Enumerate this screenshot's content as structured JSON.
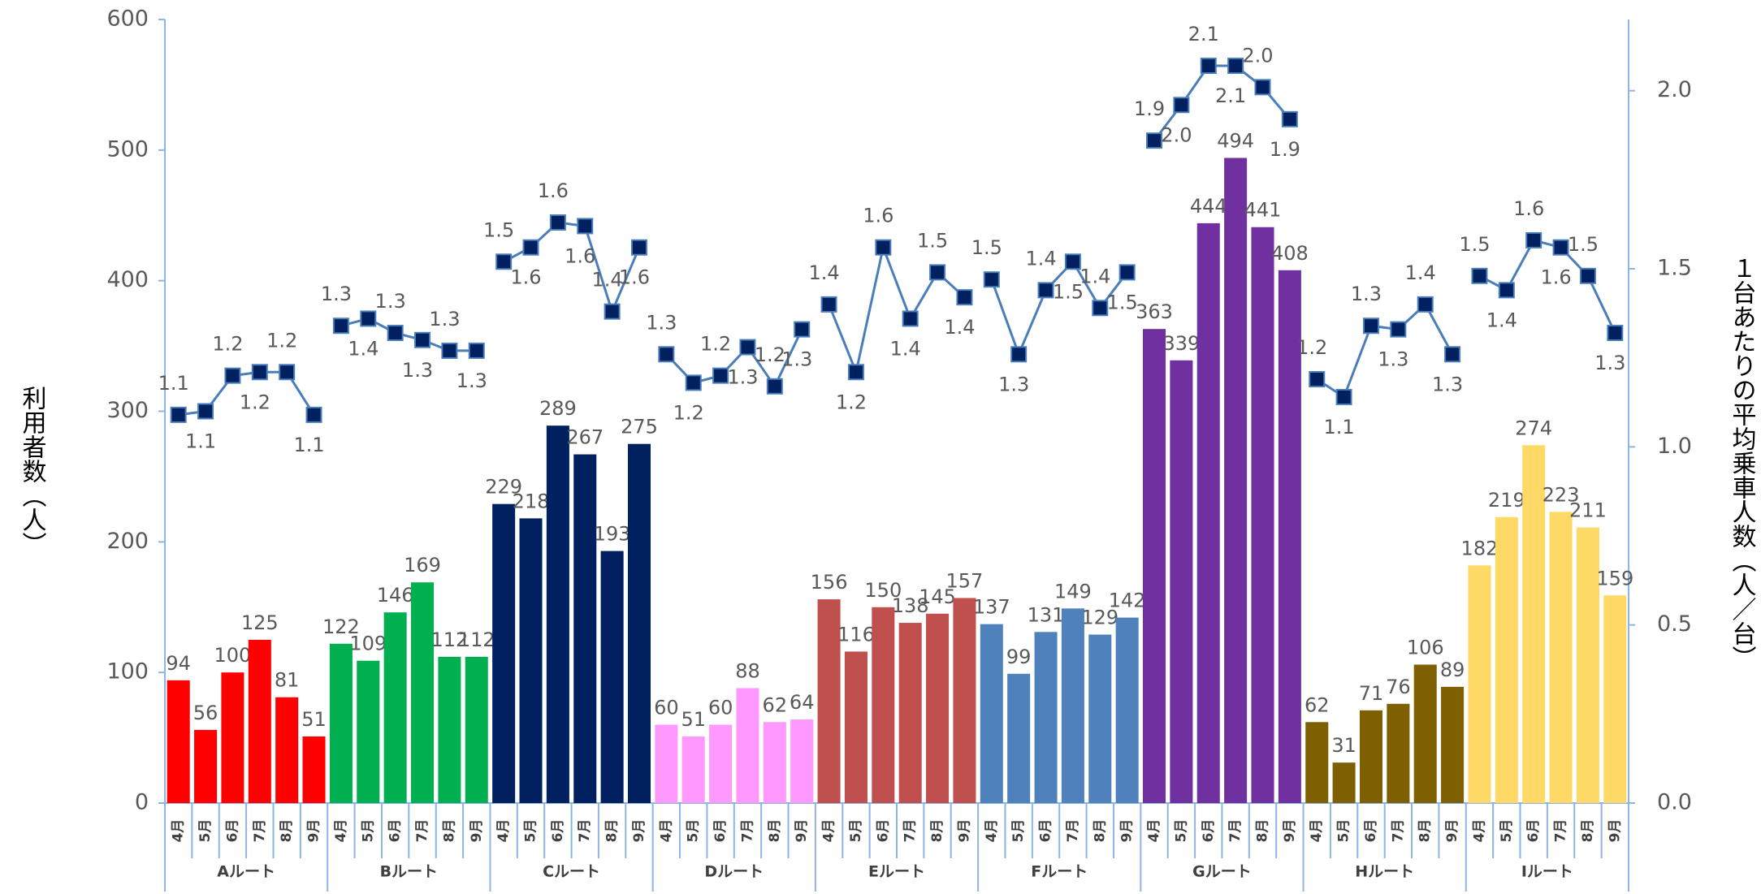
{
  "chart_data": {
    "type": "bar",
    "y_label": "利用者数（人）",
    "y2_label": "１台あたりの平均乗車人数（人／台）",
    "ylim": [
      0,
      600
    ],
    "yticks": [
      0,
      100,
      200,
      300,
      400,
      500,
      600
    ],
    "y2lim": [
      0,
      2.2
    ],
    "y2ticks": [
      {
        "value": 0,
        "label": "0.0"
      },
      0.5,
      {
        "value": 1,
        "label": "1.0"
      },
      1.5,
      {
        "value": 2,
        "label": "2.0"
      }
    ],
    "group_labels": [
      "Aルート",
      "Bルート",
      "Cルート",
      "Dルート",
      "Eルート",
      "Fルート",
      "Gルート",
      "Hルート",
      "Iルート"
    ],
    "categories": [
      "4月",
      "5月",
      "6月",
      "7月",
      "8月",
      "9月",
      "4月",
      "5月",
      "6月",
      "7月",
      "8月",
      "9月",
      "4月",
      "5月",
      "6月",
      "7月",
      "8月",
      "9月",
      "4月",
      "5月",
      "6月",
      "7月",
      "8月",
      "9月",
      "4月",
      "5月",
      "6月",
      "7月",
      "8月",
      "9月",
      "4月",
      "5月",
      "6月",
      "7月",
      "8月",
      "9月",
      "4月",
      "5月",
      "6月",
      "7月",
      "8月",
      "9月",
      "4月",
      "5月",
      "6月",
      "7月",
      "8月",
      "9月",
      "4月",
      "5月",
      "6月",
      "7月",
      "8月",
      "9月"
    ],
    "series": [
      {
        "type": "bar",
        "group_colors": [
          "#ff0000",
          "#00b050",
          "#002060",
          "#ff99ff",
          "#c0504d",
          "#4f81bd",
          "#7030a0",
          "#7f6000",
          "#ffd966"
        ],
        "values": [
          94,
          56,
          100,
          125,
          81,
          51,
          122,
          109,
          146,
          169,
          112,
          112,
          229,
          218,
          289,
          267,
          193,
          275,
          60,
          51,
          60,
          88,
          62,
          64,
          156,
          116,
          150,
          138,
          145,
          157,
          137,
          99,
          131,
          149,
          129,
          142,
          363,
          339,
          444,
          494,
          441,
          408,
          62,
          31,
          71,
          76,
          106,
          89,
          182,
          219,
          274,
          223,
          211,
          159
        ]
      },
      {
        "type": "line",
        "axis": "y2",
        "color": "#4a7ebb",
        "marker_color": "#002060",
        "values": [
          1.09,
          1.1,
          1.2,
          1.21,
          1.21,
          1.09,
          1.34,
          1.36,
          1.32,
          1.3,
          1.27,
          1.27,
          1.52,
          1.56,
          1.63,
          1.62,
          1.38,
          1.56,
          1.26,
          1.18,
          1.2,
          1.28,
          1.17,
          1.33,
          1.4,
          1.21,
          1.56,
          1.36,
          1.49,
          1.42,
          1.47,
          1.26,
          1.44,
          1.52,
          1.39,
          1.49,
          1.86,
          1.96,
          2.07,
          2.07,
          2.01,
          1.92,
          1.19,
          1.14,
          1.34,
          1.33,
          1.4,
          1.26,
          1.48,
          1.44,
          1.58,
          1.56,
          1.48,
          1.32
        ],
        "value_labels": [
          "1.1",
          "1.1",
          "1.2",
          "1.2",
          "1.2",
          "1.1",
          "1.3",
          "1.4",
          "1.3",
          "1.3",
          "1.3",
          "1.3",
          "1.5",
          "1.6",
          "1.6",
          "1.6",
          "1.4",
          "1.6",
          "1.3",
          "1.2",
          "1.2",
          "1.3",
          "1.2",
          "1.3",
          "1.4",
          "1.2",
          "1.6",
          "1.4",
          "1.5",
          "1.4",
          "1.5",
          "1.3",
          "1.4",
          "1.5",
          "1.4",
          "1.5",
          "1.9",
          "2.0",
          "2.1",
          "2.1",
          "2.0",
          "1.9",
          "1.2",
          "1.1",
          "1.3",
          "1.3",
          "1.4",
          "1.3",
          "1.5",
          "1.4",
          "1.6",
          "1.6",
          "1.5",
          "1.3"
        ]
      }
    ]
  }
}
